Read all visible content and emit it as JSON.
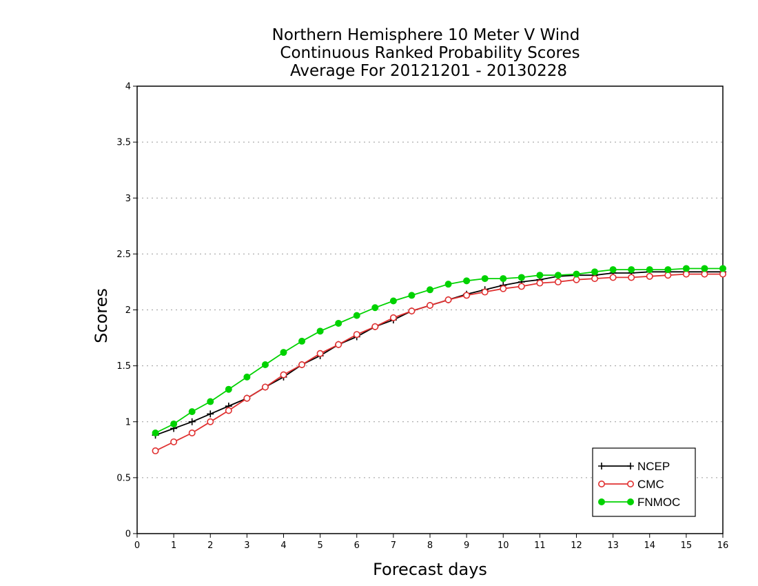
{
  "chart_data": {
    "type": "line",
    "title_lines": [
      "Northern Hemisphere 10 Meter V Wind",
      "Continuous Ranked Probability Scores",
      "Average For 20121201 - 20130228"
    ],
    "xlabel": "Forecast days",
    "ylabel": "Scores",
    "xlim": [
      0,
      16
    ],
    "ylim": [
      0,
      4
    ],
    "xticks": [
      0,
      1,
      2,
      3,
      4,
      5,
      6,
      7,
      8,
      9,
      10,
      11,
      12,
      13,
      14,
      15,
      16
    ],
    "yticks": [
      0,
      0.5,
      1,
      1.5,
      2,
      2.5,
      3,
      3.5,
      4
    ],
    "ytick_labels": [
      "0",
      "0.5",
      "1",
      "1.5",
      "2",
      "2.5",
      "3",
      "3.5",
      "4"
    ],
    "grid": "horizontal dotted",
    "legend_position": "bottom-right",
    "x": [
      0.5,
      1,
      1.5,
      2,
      2.5,
      3,
      3.5,
      4,
      4.5,
      5,
      5.5,
      6,
      6.5,
      7,
      7.5,
      8,
      8.5,
      9,
      9.5,
      10,
      10.5,
      11,
      11.5,
      12,
      12.5,
      13,
      13.5,
      14,
      14.5,
      15,
      15.5,
      16
    ],
    "series": [
      {
        "name": "NCEP",
        "color": "#000000",
        "marker": "plus",
        "values": [
          0.88,
          0.94,
          1.0,
          1.07,
          1.14,
          1.21,
          1.31,
          1.4,
          1.51,
          1.59,
          1.69,
          1.76,
          1.85,
          1.91,
          1.99,
          2.04,
          2.09,
          2.14,
          2.18,
          2.22,
          2.25,
          2.27,
          2.3,
          2.31,
          2.31,
          2.33,
          2.33,
          2.34,
          2.34,
          2.34,
          2.34,
          2.34
        ]
      },
      {
        "name": "CMC",
        "color": "#e03030",
        "marker": "open-circle",
        "values": [
          0.74,
          0.82,
          0.9,
          1.0,
          1.1,
          1.21,
          1.31,
          1.42,
          1.51,
          1.61,
          1.69,
          1.78,
          1.85,
          1.93,
          1.99,
          2.04,
          2.09,
          2.13,
          2.16,
          2.19,
          2.21,
          2.24,
          2.25,
          2.27,
          2.28,
          2.29,
          2.29,
          2.3,
          2.31,
          2.32,
          2.32,
          2.32
        ]
      },
      {
        "name": "FNMOC",
        "color": "#00d200",
        "marker": "filled-circle",
        "values": [
          0.9,
          0.98,
          1.09,
          1.18,
          1.29,
          1.4,
          1.51,
          1.62,
          1.72,
          1.81,
          1.88,
          1.95,
          2.02,
          2.08,
          2.13,
          2.18,
          2.23,
          2.26,
          2.28,
          2.28,
          2.29,
          2.31,
          2.31,
          2.32,
          2.34,
          2.36,
          2.36,
          2.36,
          2.36,
          2.37,
          2.37,
          2.37
        ]
      }
    ]
  }
}
